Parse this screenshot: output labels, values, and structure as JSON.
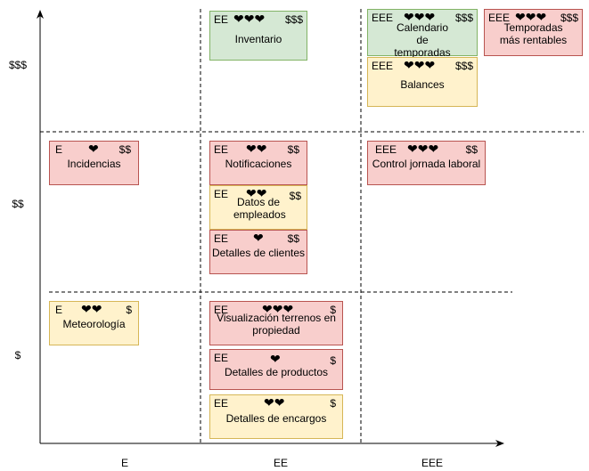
{
  "y_axis": {
    "labels": [
      "$$$",
      "$$",
      "$"
    ]
  },
  "x_axis": {
    "labels": [
      "E",
      "EE",
      "EEE"
    ]
  },
  "heart_glyph": "❤",
  "colors": {
    "red": "#f8cecc",
    "yellow": "#fff2cc",
    "green": "#d5e8d4"
  },
  "cards": [
    {
      "id": "inventario",
      "effort": "EE",
      "hearts": "❤❤❤",
      "cost": "$$$",
      "title": "Inventario",
      "color": "green"
    },
    {
      "id": "calendario",
      "effort": "EEE",
      "hearts": "❤❤❤",
      "cost": "$$$",
      "title": "Calendario de temporadas",
      "color": "green"
    },
    {
      "id": "temporadas",
      "effort": "EEE",
      "hearts": "❤❤❤",
      "cost": "$$$",
      "title": "Temporadas más rentables",
      "color": "red"
    },
    {
      "id": "balances",
      "effort": "EEE",
      "hearts": "❤❤❤",
      "cost": "$$$",
      "title": "Balances",
      "color": "yellow"
    },
    {
      "id": "incidencias",
      "effort": "E",
      "hearts": "❤",
      "cost": "$$",
      "title": "Incidencias",
      "color": "red"
    },
    {
      "id": "notificaciones",
      "effort": "EE",
      "hearts": "❤❤",
      "cost": "$$",
      "title": "Notificaciones",
      "color": "red"
    },
    {
      "id": "control-jornada",
      "effort": "EEE",
      "hearts": "❤❤❤",
      "cost": "$$",
      "title": "Control jornada laboral",
      "color": "red"
    },
    {
      "id": "datos-empleados",
      "effort": "EE",
      "hearts": "❤❤",
      "cost": "$$",
      "title": "Datos de empleados",
      "color": "yellow"
    },
    {
      "id": "detalles-clientes",
      "effort": "EE",
      "hearts": "❤",
      "cost": "$$",
      "title": "Detalles de clientes",
      "color": "red"
    },
    {
      "id": "meteorologia",
      "effort": "E",
      "hearts": "❤❤",
      "cost": "$",
      "title": "Meteorología",
      "color": "yellow"
    },
    {
      "id": "visualizacion-terrenos",
      "effort": "EE",
      "hearts": "❤❤❤",
      "cost": "$",
      "title": "Visualización terrenos en propiedad",
      "color": "red"
    },
    {
      "id": "detalles-productos",
      "effort": "EE",
      "hearts": "❤",
      "cost": "$",
      "title": "Detalles de productos",
      "color": "red"
    },
    {
      "id": "detalles-encargos",
      "effort": "EE",
      "hearts": "❤❤",
      "cost": "$",
      "title": "Detalles de encargos",
      "color": "yellow"
    }
  ]
}
